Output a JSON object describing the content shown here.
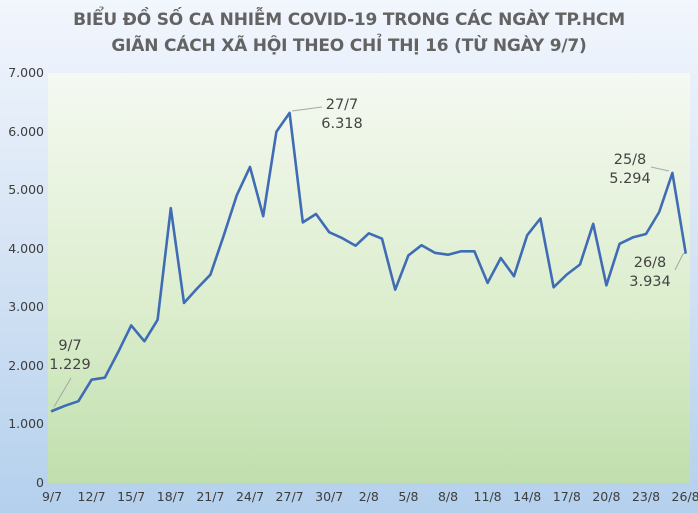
{
  "title": {
    "line1": "BIỂU ĐỒ SỐ CA NHIỄM COVID-19 TRONG CÁC NGÀY TP.HCM",
    "line2": "GIÃN CÁCH XÃ HỘI THEO CHỈ THỊ 16 (TỪ NGÀY 9/7)"
  },
  "colors": {
    "line": "#3f6cb5",
    "grid": "#7fb46b",
    "leader": "#a6a6a6",
    "title_text": "#636363",
    "axis_text": "#3d3d3d",
    "annotation_text": "#444444",
    "plot_bg_top": "#f5f9f2",
    "plot_bg_mid": "#ddeecf",
    "plot_bg_bottom": "#c0dfad",
    "page_bg_top": "#f2f6fd",
    "page_bg_mid": "#d8e5f5",
    "page_bg_bottom": "#b4d0ed"
  },
  "chart_data": {
    "type": "line",
    "title": "BIỂU ĐỒ SỐ CA NHIỄM COVID-19 TRONG CÁC NGÀY TP.HCM GIÃN CÁCH XÃ HỘI THEO CHỈ THỊ 16 (TỪ NGÀY 9/7)",
    "x": [
      "9/7",
      "10/7",
      "11/7",
      "12/7",
      "13/7",
      "14/7",
      "15/7",
      "16/7",
      "17/7",
      "18/7",
      "19/7",
      "20/7",
      "21/7",
      "22/7",
      "23/7",
      "24/7",
      "25/7",
      "26/7",
      "27/7",
      "28/7",
      "29/7",
      "30/7",
      "31/7",
      "1/8",
      "2/8",
      "3/8",
      "4/8",
      "5/8",
      "6/8",
      "7/8",
      "8/8",
      "9/8",
      "10/8",
      "11/8",
      "12/8",
      "13/8",
      "14/8",
      "15/8",
      "16/8",
      "17/8",
      "18/8",
      "19/8",
      "20/8",
      "21/8",
      "22/8",
      "23/8",
      "24/8",
      "25/8",
      "26/8"
    ],
    "values": [
      1229,
      1320,
      1397,
      1764,
      1797,
      2229,
      2691,
      2420,
      2786,
      4692,
      3074,
      3322,
      3556,
      4218,
      4913,
      5396,
      4555,
      5997,
      6318,
      4449,
      4592,
      4282,
      4180,
      4052,
      4264,
      4171,
      3300,
      3886,
      4060,
      3930,
      3898,
      3956,
      3956,
      3416,
      3841,
      3531,
      4231,
      4516,
      3341,
      3559,
      3731,
      4425,
      3375,
      4084,
      4193,
      4251,
      4627,
      5294,
      3934
    ],
    "x_tick_labels": [
      "9/7",
      "12/7",
      "15/7",
      "18/7",
      "21/7",
      "24/7",
      "27/7",
      "30/7",
      "2/8",
      "5/8",
      "8/8",
      "11/8",
      "14/8",
      "17/8",
      "20/8",
      "23/8",
      "26/8"
    ],
    "y_ticks": [
      "7.000",
      "6.000",
      "5.000",
      "4.000",
      "3.000",
      "2.000",
      "1.000",
      "0"
    ],
    "ylim": [
      0,
      7000
    ],
    "grid": "vertical",
    "legend": "none",
    "annotations": [
      {
        "date": "9/7",
        "value": 1229,
        "value_text": "1.229"
      },
      {
        "date": "27/7",
        "value": 6318,
        "value_text": "6.318"
      },
      {
        "date": "25/8",
        "value": 5294,
        "value_text": "5.294"
      },
      {
        "date": "26/8",
        "value": 3934,
        "value_text": "3.934"
      }
    ]
  }
}
